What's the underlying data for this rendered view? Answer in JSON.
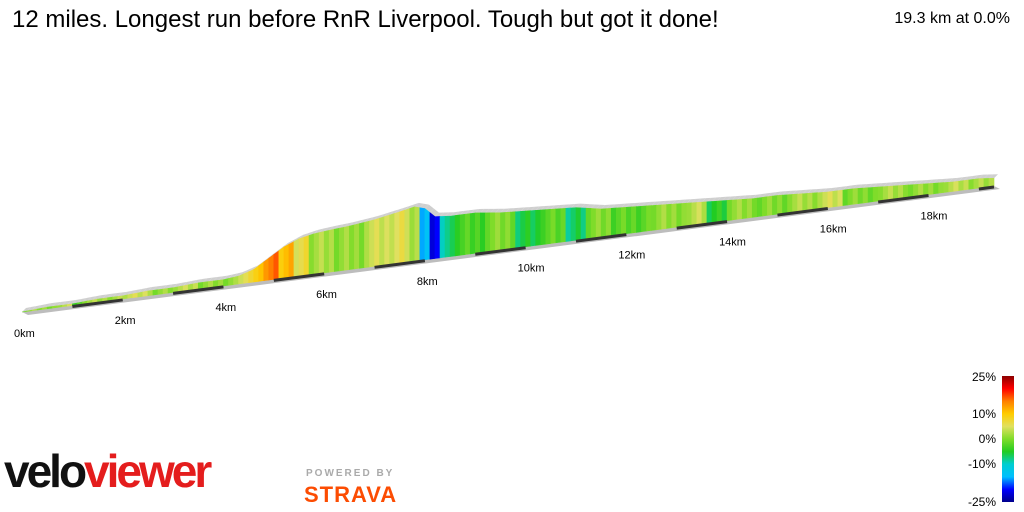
{
  "header": {
    "title": "12 miles. Longest run before RnR Liverpool. Tough but got it done!",
    "summary": "19.3 km at 0.0%"
  },
  "branding": {
    "logo_part1": "velo",
    "logo_part2": "viewer",
    "powered_by": "POWERED BY",
    "strava": "STRAVA"
  },
  "colors": {
    "gradient_scale": [
      "#00008b",
      "#0000ff",
      "#00bfff",
      "#00ced1",
      "#22cc22",
      "#7fdc2a",
      "#e0e060",
      "#ffcc00",
      "#ff7f00",
      "#ff0000",
      "#8b0000"
    ]
  },
  "chart_data": {
    "type": "area",
    "x_unit": "km",
    "distance_km": 19.3,
    "x_ticks": [
      {
        "value": 0,
        "label": "0km"
      },
      {
        "value": 2,
        "label": "2km"
      },
      {
        "value": 4,
        "label": "4km"
      },
      {
        "value": 6,
        "label": "6km"
      },
      {
        "value": 8,
        "label": "8km"
      },
      {
        "value": 10,
        "label": "10km"
      },
      {
        "value": 12,
        "label": "12km"
      },
      {
        "value": 14,
        "label": "14km"
      },
      {
        "value": 16,
        "label": "16km"
      },
      {
        "value": 18,
        "label": "18km"
      }
    ],
    "elevation_profile": [
      [
        0,
        0
      ],
      [
        0.5,
        1
      ],
      [
        1.0,
        1
      ],
      [
        1.5,
        2
      ],
      [
        2.0,
        2
      ],
      [
        2.5,
        3
      ],
      [
        3.0,
        3
      ],
      [
        3.5,
        4
      ],
      [
        4.0,
        4
      ],
      [
        4.3,
        5
      ],
      [
        4.6,
        8
      ],
      [
        4.9,
        14
      ],
      [
        5.2,
        20
      ],
      [
        5.5,
        24
      ],
      [
        5.8,
        26
      ],
      [
        6.1,
        27
      ],
      [
        6.5,
        28
      ],
      [
        7.0,
        30
      ],
      [
        7.5,
        33
      ],
      [
        7.8,
        35
      ],
      [
        8.0,
        33
      ],
      [
        8.2,
        27
      ],
      [
        8.5,
        26
      ],
      [
        9.0,
        26
      ],
      [
        9.5,
        24
      ],
      [
        10.0,
        23
      ],
      [
        10.5,
        22
      ],
      [
        11.0,
        21
      ],
      [
        11.5,
        18
      ],
      [
        12.0,
        17
      ],
      [
        12.5,
        16
      ],
      [
        13.0,
        15
      ],
      [
        13.5,
        14
      ],
      [
        14.0,
        13
      ],
      [
        14.5,
        12
      ],
      [
        15.0,
        12
      ],
      [
        15.5,
        11
      ],
      [
        16.0,
        10
      ],
      [
        16.5,
        10
      ],
      [
        17.0,
        9
      ],
      [
        17.5,
        8
      ],
      [
        18.0,
        7
      ],
      [
        18.5,
        6
      ],
      [
        19.0,
        6
      ],
      [
        19.3,
        5
      ]
    ],
    "gradient_segments": [
      [
        0,
        0.7,
        1
      ],
      [
        0.7,
        1.0,
        3
      ],
      [
        1.0,
        1.2,
        -2
      ],
      [
        1.2,
        2.0,
        2
      ],
      [
        2.0,
        2.6,
        4
      ],
      [
        2.6,
        3.0,
        1
      ],
      [
        3.0,
        3.5,
        3
      ],
      [
        3.5,
        4.2,
        1
      ],
      [
        4.2,
        4.5,
        4
      ],
      [
        4.5,
        4.8,
        9
      ],
      [
        4.8,
        5.1,
        15
      ],
      [
        5.1,
        5.4,
        11
      ],
      [
        5.4,
        5.7,
        6
      ],
      [
        5.7,
        6.2,
        2
      ],
      [
        6.2,
        6.8,
        1
      ],
      [
        6.8,
        7.3,
        4
      ],
      [
        7.3,
        7.7,
        5
      ],
      [
        7.7,
        7.9,
        3
      ],
      [
        7.9,
        8.1,
        -14
      ],
      [
        8.1,
        8.3,
        -20
      ],
      [
        8.3,
        8.6,
        -8
      ],
      [
        8.6,
        9.2,
        -3
      ],
      [
        9.2,
        9.8,
        0
      ],
      [
        9.8,
        10.3,
        -6
      ],
      [
        10.3,
        10.8,
        -2
      ],
      [
        10.8,
        11.2,
        -7
      ],
      [
        11.2,
        11.7,
        0
      ],
      [
        11.7,
        12.5,
        -2
      ],
      [
        12.5,
        13.2,
        1
      ],
      [
        13.2,
        13.6,
        3
      ],
      [
        13.6,
        14.0,
        -5
      ],
      [
        14.0,
        14.6,
        1
      ],
      [
        14.6,
        15.2,
        0
      ],
      [
        15.2,
        15.8,
        2
      ],
      [
        15.8,
        16.3,
        4
      ],
      [
        16.3,
        17.0,
        0
      ],
      [
        17.0,
        17.6,
        2
      ],
      [
        17.6,
        18.3,
        1
      ],
      [
        18.3,
        18.8,
        3
      ],
      [
        18.8,
        19.3,
        2
      ]
    ],
    "legend": {
      "title": "",
      "stops": [
        {
          "value": 25,
          "label": "25%"
        },
        {
          "value": 10,
          "label": "10%"
        },
        {
          "value": 0,
          "label": "0%"
        },
        {
          "value": -10,
          "label": "-10%"
        },
        {
          "value": -25,
          "label": "-25%"
        }
      ]
    }
  }
}
